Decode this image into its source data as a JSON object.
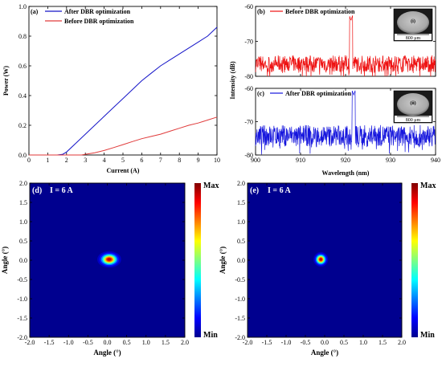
{
  "colors": {
    "after": "#1414c8",
    "before": "#e03a3a",
    "before_spec": "#ee1111",
    "after_spec": "#1515dd",
    "axis": "#000000"
  },
  "chart_data": [
    {
      "id": "a",
      "type": "line",
      "panel_label": "(a)",
      "xlabel": "Current (A)",
      "ylabel": "Power (W)",
      "xlim": [
        0,
        10
      ],
      "ylim": [
        0,
        1.0
      ],
      "xticks": [
        "0",
        "1",
        "2",
        "3",
        "4",
        "5",
        "6",
        "7",
        "8",
        "9",
        "10"
      ],
      "yticks": [
        "0.0",
        "0.2",
        "0.4",
        "0.6",
        "0.8",
        "1.0"
      ],
      "legend_position": "top-left",
      "series": [
        {
          "name": "After DBR optimization",
          "color": "#1414c8",
          "x": [
            0,
            1.5,
            1.8,
            2,
            2.5,
            3,
            3.5,
            4,
            4.5,
            5,
            5.5,
            6,
            6.5,
            7,
            7.5,
            8,
            8.5,
            9,
            9.5,
            10
          ],
          "y": [
            0,
            0,
            0.005,
            0.02,
            0.08,
            0.14,
            0.2,
            0.26,
            0.32,
            0.38,
            0.44,
            0.5,
            0.55,
            0.6,
            0.64,
            0.68,
            0.72,
            0.76,
            0.8,
            0.86
          ]
        },
        {
          "name": "Before DBR optimization",
          "color": "#e03a3a",
          "x": [
            0,
            2.8,
            3,
            3.5,
            4,
            4.5,
            5,
            5.5,
            6,
            6.5,
            7,
            7.5,
            8,
            8.5,
            9,
            9.5,
            10
          ],
          "y": [
            0,
            0,
            0.005,
            0.015,
            0.03,
            0.05,
            0.07,
            0.09,
            0.11,
            0.125,
            0.14,
            0.16,
            0.18,
            0.2,
            0.215,
            0.235,
            0.255
          ]
        }
      ]
    },
    {
      "id": "b",
      "type": "line",
      "panel_label": "(b)",
      "legend": "Before DBR optimization",
      "inset_label": "(i)",
      "inset_scale": "800 μm",
      "xlim": [
        900,
        940
      ],
      "ylim": [
        -80,
        -60
      ],
      "xticks": [
        "900",
        "910",
        "920",
        "930",
        "940"
      ],
      "yticks": [
        "-80",
        "-70",
        "-60"
      ],
      "color": "#ee1111",
      "noise_floor": -77,
      "noise_amplitude": 3,
      "peak_wavelength": 921.2,
      "peak_value": -64
    },
    {
      "id": "c",
      "type": "line",
      "panel_label": "(c)",
      "legend": "After DBR optimization",
      "inset_label": "(ii)",
      "inset_scale": "800 μm",
      "xlabel": "Wavelength (nm)",
      "ylabel": "Intensity (dB)",
      "xlim": [
        900,
        940
      ],
      "ylim": [
        -80,
        -60
      ],
      "xticks": [
        "900",
        "910",
        "920",
        "930",
        "940"
      ],
      "yticks": [
        "-80",
        "-70",
        "-60"
      ],
      "color": "#1515dd",
      "noise_floor": -75,
      "noise_amplitude": 4,
      "peak_wavelength": 921.8,
      "peak_value": -62
    },
    {
      "id": "d",
      "type": "heatmap",
      "panel_label": "(d)",
      "condition": "I = 6 A",
      "xlabel": "Angle (°)",
      "ylabel": "Angle (°)",
      "xlim": [
        -2,
        2
      ],
      "ylim": [
        -2,
        2
      ],
      "xticks": [
        "-2.0",
        "-1.5",
        "-1.0",
        "-0.5",
        "0.0",
        "0.5",
        "1.0",
        "1.5",
        "2.0"
      ],
      "yticks": [
        "-2.0",
        "-1.5",
        "-1.0",
        "-0.5",
        "0.0",
        "0.5",
        "1.0",
        "1.5",
        "2.0"
      ],
      "colorbar": [
        "Max",
        "Min"
      ],
      "spot_center": [
        0.05,
        0.02
      ],
      "spot_sigma": [
        0.13,
        0.09
      ]
    },
    {
      "id": "e",
      "type": "heatmap",
      "panel_label": "(e)",
      "condition": "I = 6 A",
      "xlabel": "Angle (°)",
      "ylabel": "Angle (°)",
      "xlim": [
        -2,
        2
      ],
      "ylim": [
        -2,
        2
      ],
      "xticks": [
        "-2.0",
        "-1.5",
        "-1.0",
        "-0.5",
        "0.0",
        "0.5",
        "1.0",
        "1.5",
        "2.0"
      ],
      "yticks": [
        "-2.0",
        "-1.5",
        "-1.0",
        "-0.5",
        "0.0",
        "0.5",
        "1.0",
        "1.5",
        "2.0"
      ],
      "colorbar": [
        "Max",
        "Min"
      ],
      "spot_center": [
        -0.1,
        0.02
      ],
      "spot_sigma": [
        0.08,
        0.08
      ]
    }
  ]
}
